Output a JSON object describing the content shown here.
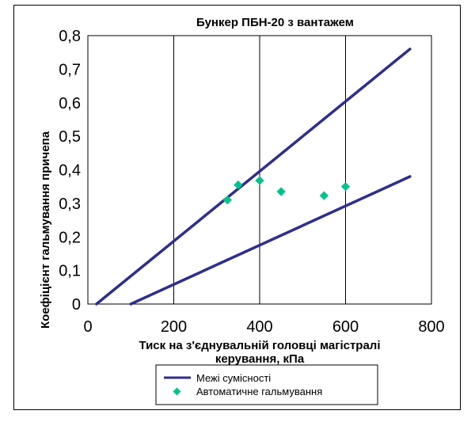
{
  "chart_data": {
    "type": "line",
    "title": "Бункер  ПБН-20  з  вантажем",
    "xlabel_line1": "Тиск на з'єднувальній головці магістралі",
    "xlabel_line2": "керування, кПа",
    "ylabel": "Коефіцієнт гальмування причепа",
    "xlim": [
      0,
      800
    ],
    "ylim": [
      0,
      0.8
    ],
    "x_ticks": [
      "0",
      "200",
      "400",
      "600",
      "800"
    ],
    "y_ticks": [
      "0",
      "0,1",
      "0,2",
      "0,3",
      "0,4",
      "0,5",
      "0,6",
      "0,7",
      "0,8"
    ],
    "grid": "vertical",
    "legend_position": "bottom",
    "series": [
      {
        "name": "Межі сумісності",
        "kind": "line",
        "color": "#2E2E8F",
        "segments": [
          [
            [
              20,
              0.0
            ],
            [
              750,
              0.76
            ]
          ],
          [
            [
              100,
              0.0
            ],
            [
              750,
              0.38
            ]
          ]
        ]
      },
      {
        "name": "Автоматичне гальмування",
        "kind": "scatter",
        "color": "#00C48C",
        "points": [
          [
            325,
            0.31
          ],
          [
            350,
            0.355
          ],
          [
            400,
            0.368
          ],
          [
            450,
            0.335
          ],
          [
            550,
            0.323
          ],
          [
            600,
            0.35
          ]
        ]
      }
    ]
  }
}
